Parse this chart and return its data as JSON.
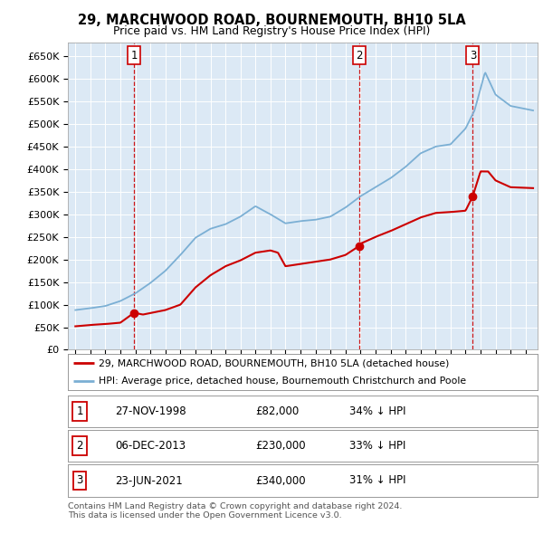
{
  "title": "29, MARCHWOOD ROAD, BOURNEMOUTH, BH10 5LA",
  "subtitle": "Price paid vs. HM Land Registry's House Price Index (HPI)",
  "bg_color": "#dce9f5",
  "sale_color": "#cc0000",
  "hpi_color": "#7bafd4",
  "sale_dates_num": [
    1998.91,
    2013.92,
    2021.48
  ],
  "sale_prices": [
    82000,
    230000,
    340000
  ],
  "sale_labels": [
    "1",
    "2",
    "3"
  ],
  "legend_sale": "29, MARCHWOOD ROAD, BOURNEMOUTH, BH10 5LA (detached house)",
  "legend_hpi": "HPI: Average price, detached house, Bournemouth Christchurch and Poole",
  "table_rows": [
    [
      "1",
      "27-NOV-1998",
      "£82,000",
      "34% ↓ HPI"
    ],
    [
      "2",
      "06-DEC-2013",
      "£230,000",
      "33% ↓ HPI"
    ],
    [
      "3",
      "23-JUN-2021",
      "£340,000",
      "31% ↓ HPI"
    ]
  ],
  "footer": "Contains HM Land Registry data © Crown copyright and database right 2024.\nThis data is licensed under the Open Government Licence v3.0.",
  "ylim": [
    0,
    680000
  ],
  "yticks": [
    0,
    50000,
    100000,
    150000,
    200000,
    250000,
    300000,
    350000,
    400000,
    450000,
    500000,
    550000,
    600000,
    650000
  ],
  "xlim_left": 1994.5,
  "xlim_right": 2025.8,
  "xticks": [
    1995,
    1996,
    1997,
    1998,
    1999,
    2000,
    2001,
    2002,
    2003,
    2004,
    2005,
    2006,
    2007,
    2008,
    2009,
    2010,
    2011,
    2012,
    2013,
    2014,
    2015,
    2016,
    2017,
    2018,
    2019,
    2020,
    2021,
    2022,
    2023,
    2024,
    2025
  ]
}
